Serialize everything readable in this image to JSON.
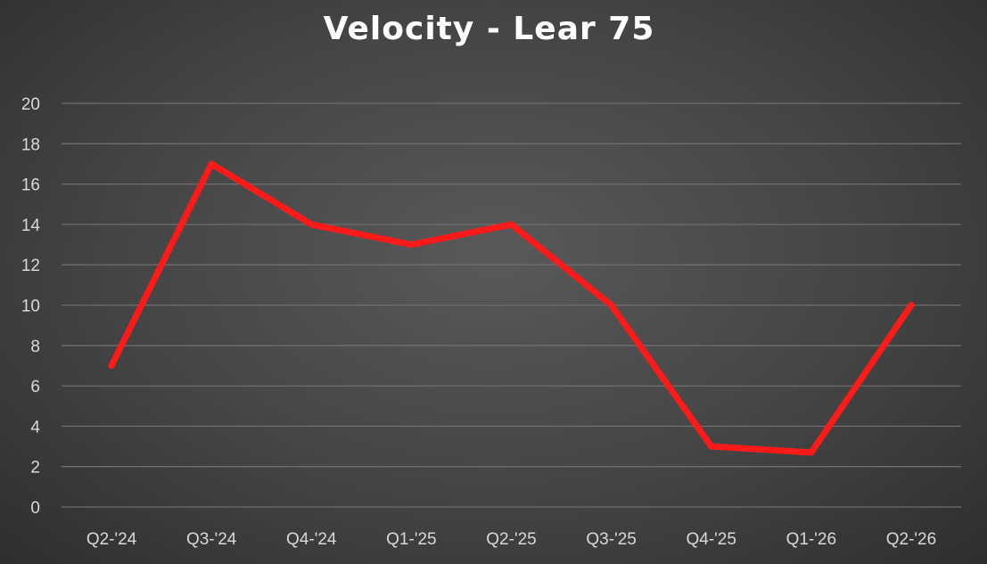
{
  "chart_data": {
    "type": "line",
    "title": "Velocity - Lear 75",
    "xlabel": "",
    "ylabel": "",
    "categories": [
      "Q2-'24",
      "Q3-'24",
      "Q4-'24",
      "Q1-'25",
      "Q2-'25",
      "Q3-'25",
      "Q4-'25",
      "Q1-'26",
      "Q2-'26"
    ],
    "series": [
      {
        "values": [
          7,
          17,
          14,
          13,
          14,
          10,
          3,
          2.7,
          10
        ],
        "color": "#ff1a1a"
      }
    ],
    "ylim": [
      0,
      20
    ],
    "yticks": [
      0,
      2,
      4,
      6,
      8,
      10,
      12,
      14,
      16,
      18,
      20
    ],
    "grid": true,
    "legend": "none"
  }
}
